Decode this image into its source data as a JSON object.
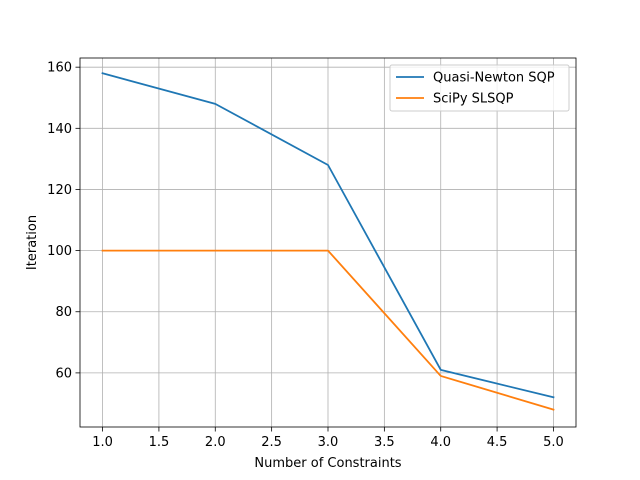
{
  "chart_data": {
    "type": "line",
    "title": "",
    "xlabel": "Number of Constraints",
    "ylabel": "Iteration",
    "x": [
      1.0,
      2.0,
      3.0,
      4.0,
      5.0
    ],
    "xlim": [
      0.8,
      5.2
    ],
    "ylim": [
      42.3,
      163
    ],
    "x_ticks": [
      "1.0",
      "1.5",
      "2.0",
      "2.5",
      "3.0",
      "3.5",
      "4.0",
      "4.5",
      "5.0"
    ],
    "y_ticks": [
      "60",
      "80",
      "100",
      "120",
      "140",
      "160"
    ],
    "grid": true,
    "legend_position": "top-right",
    "series": [
      {
        "name": "Quasi-Newton SQP",
        "color": "#1f77b4",
        "values": [
          158,
          148,
          128,
          61,
          52
        ]
      },
      {
        "name": "SciPy SLSQP",
        "color": "#ff7f0e",
        "values": [
          100,
          100,
          100,
          59,
          48
        ]
      }
    ]
  }
}
